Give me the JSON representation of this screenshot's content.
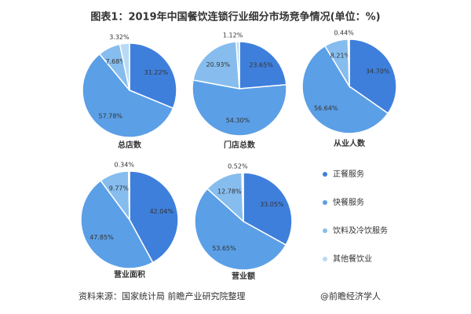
{
  "header": {
    "title": "图表1：2019年中国餐饮连锁行业细分市场竞争情况(单位：%)"
  },
  "footer": {
    "source": "资料来源：国家统计局 前瞻产业研究院整理",
    "credit": "@前瞻经济学人"
  },
  "chart_data": [
    {
      "type": "pie",
      "title": "总店数",
      "categories": [
        "正餐服务",
        "快餐服务",
        "饮料及冷饮服务",
        "其他餐饮业"
      ],
      "colors": [
        "#3f7fdc",
        "#5b9fe6",
        "#86bdee",
        "#b9daf6"
      ],
      "values": [
        31.22,
        57.78,
        7.68,
        3.32
      ],
      "value_labels": [
        "31.22%",
        "57.78%",
        "7.68%",
        "3.32%"
      ]
    },
    {
      "type": "pie",
      "title": "门店总数",
      "categories": [
        "正餐服务",
        "快餐服务",
        "饮料及冷饮服务",
        "其他餐饮业"
      ],
      "colors": [
        "#3f7fdc",
        "#5b9fe6",
        "#86bdee",
        "#b9daf6"
      ],
      "values": [
        23.65,
        54.3,
        20.93,
        1.12
      ],
      "value_labels": [
        "23.65%",
        "54.30%",
        "20.93%",
        "1.12%"
      ]
    },
    {
      "type": "pie",
      "title": "从业人数",
      "categories": [
        "正餐服务",
        "快餐服务",
        "饮料及冷饮服务",
        "其他餐饮业"
      ],
      "colors": [
        "#3f7fdc",
        "#5b9fe6",
        "#86bdee",
        "#b9daf6"
      ],
      "values": [
        34.7,
        56.64,
        8.21,
        0.44
      ],
      "value_labels": [
        "34.70%",
        "56.64%",
        "8.21%",
        "0.44%"
      ]
    },
    {
      "type": "pie",
      "title": "营业面积",
      "categories": [
        "正餐服务",
        "快餐服务",
        "饮料及冷饮服务",
        "其他餐饮业"
      ],
      "colors": [
        "#3f7fdc",
        "#5b9fe6",
        "#86bdee",
        "#b9daf6"
      ],
      "values": [
        42.04,
        47.85,
        9.77,
        0.34
      ],
      "value_labels": [
        "42.04%",
        "47.85%",
        "9.77%",
        "0.34%"
      ]
    },
    {
      "type": "pie",
      "title": "营业额",
      "categories": [
        "正餐服务",
        "快餐服务",
        "饮料及冷饮服务",
        "其他餐饮业"
      ],
      "colors": [
        "#3f7fdc",
        "#5b9fe6",
        "#86bdee",
        "#b9daf6"
      ],
      "values": [
        33.05,
        53.65,
        12.78,
        0.52
      ],
      "value_labels": [
        "33.05%",
        "53.65%",
        "12.78%",
        "0.52%"
      ]
    }
  ]
}
